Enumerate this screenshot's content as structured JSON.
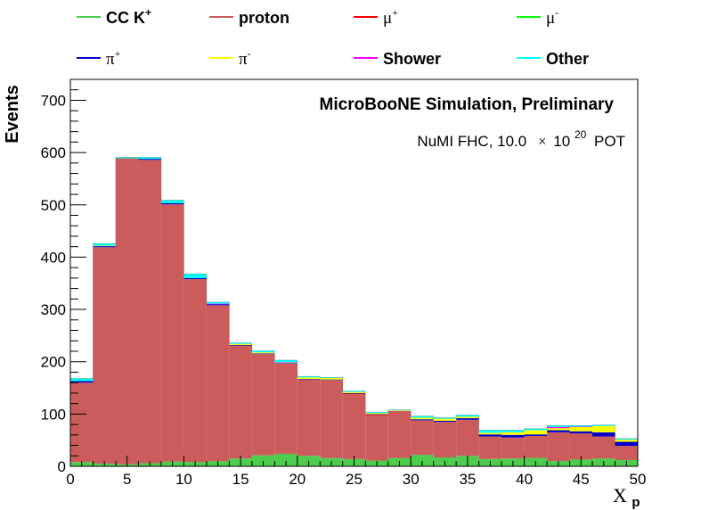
{
  "chart_data": {
    "type": "bar",
    "stacked": true,
    "title": "MicroBooNE Simulation, Preliminary",
    "subtitle": {
      "text": "NuMI FHC, 10.0",
      "times": "×",
      "base": "10",
      "exponent": "20",
      "unit": "POT"
    },
    "xlabel": {
      "main": "X",
      "sub": "p"
    },
    "ylabel": "Events",
    "xlim": [
      0,
      50
    ],
    "ylim": [
      0,
      740
    ],
    "x_ticks": [
      "0",
      "5",
      "10",
      "15",
      "20",
      "25",
      "30",
      "35",
      "40",
      "45",
      "50"
    ],
    "y_ticks": [
      "0",
      "100",
      "200",
      "300",
      "400",
      "500",
      "600",
      "700"
    ],
    "bin_edges": [
      0,
      2,
      4,
      6,
      8,
      10,
      12,
      14,
      16,
      18,
      20,
      22,
      24,
      26,
      28,
      30,
      32,
      34,
      36,
      38,
      40,
      42,
      44,
      46,
      48,
      50
    ],
    "grid": false,
    "legend_position": "top",
    "legend": [
      {
        "label": "CC K",
        "sup": "+",
        "color": "#4dcc4d",
        "style": "bold"
      },
      {
        "label": "proton",
        "sup": "",
        "color": "#cc5c5c",
        "style": "bold"
      },
      {
        "label": "μ",
        "sup": "+",
        "color": "#ff0000",
        "style": "serif"
      },
      {
        "label": "μ",
        "sup": "-",
        "color": "#00ff00",
        "style": "serif"
      },
      {
        "label": "π",
        "sup": "+",
        "color": "#0000cc",
        "style": "serif"
      },
      {
        "label": "π",
        "sup": "-",
        "color": "#ffff00",
        "style": "serif"
      },
      {
        "label": "Shower",
        "sup": "",
        "color": "#ff00ff",
        "style": "bold"
      },
      {
        "label": "Other",
        "sup": "",
        "color": "#00ffff",
        "style": "bold"
      }
    ],
    "series": [
      {
        "name": "CC K+",
        "color": "#4dcc4d",
        "values": [
          8,
          5,
          4,
          6,
          9,
          8,
          10,
          15,
          21,
          24,
          20,
          16,
          14,
          11,
          16,
          22,
          17,
          20,
          14,
          15,
          16,
          10,
          13,
          15,
          12
        ]
      },
      {
        "name": "proton",
        "color": "#cc5c5c",
        "values": [
          152,
          414,
          585,
          580,
          492,
          350,
          298,
          216,
          194,
          172,
          146,
          149,
          124,
          87,
          90,
          66,
          68,
          69,
          43,
          40,
          42,
          55,
          50,
          42,
          27
        ]
      },
      {
        "name": "μ+",
        "color": "#ff0000",
        "values": [
          0,
          0,
          0,
          0,
          0,
          0,
          0,
          0,
          0,
          0,
          0,
          0,
          1,
          1,
          0,
          0,
          0,
          0,
          0,
          0,
          0,
          0,
          0,
          0,
          0
        ]
      },
      {
        "name": "μ-",
        "color": "#00ff00",
        "values": [
          0,
          0,
          0,
          0,
          0,
          0,
          0,
          0,
          0,
          0,
          0,
          0,
          0,
          0,
          0,
          0,
          0,
          0,
          0,
          0,
          0,
          0,
          0,
          0,
          0
        ]
      },
      {
        "name": "π+",
        "color": "#0000cc",
        "values": [
          3,
          2,
          0,
          2,
          2,
          2,
          2,
          1,
          1,
          1,
          1,
          1,
          1,
          1,
          0,
          2,
          2,
          3,
          4,
          5,
          3,
          4,
          4,
          8,
          8
        ]
      },
      {
        "name": "π-",
        "color": "#ffff00",
        "values": [
          0,
          1,
          0,
          0,
          0,
          0,
          0,
          2,
          2,
          1,
          3,
          3,
          2,
          2,
          1,
          3,
          4,
          3,
          3,
          5,
          8,
          4,
          8,
          12,
          4
        ]
      },
      {
        "name": "Shower",
        "color": "#ff00ff",
        "values": [
          0,
          0,
          0,
          0,
          0,
          0,
          1,
          0,
          0,
          1,
          0,
          0,
          0,
          0,
          0,
          0,
          0,
          0,
          0,
          0,
          0,
          2,
          1,
          0,
          0
        ]
      },
      {
        "name": "Other",
        "color": "#00ffff",
        "values": [
          5,
          4,
          2,
          3,
          6,
          8,
          3,
          2,
          3,
          4,
          2,
          1,
          2,
          2,
          1,
          3,
          2,
          3,
          5,
          4,
          3,
          3,
          2,
          2,
          2
        ]
      }
    ]
  }
}
